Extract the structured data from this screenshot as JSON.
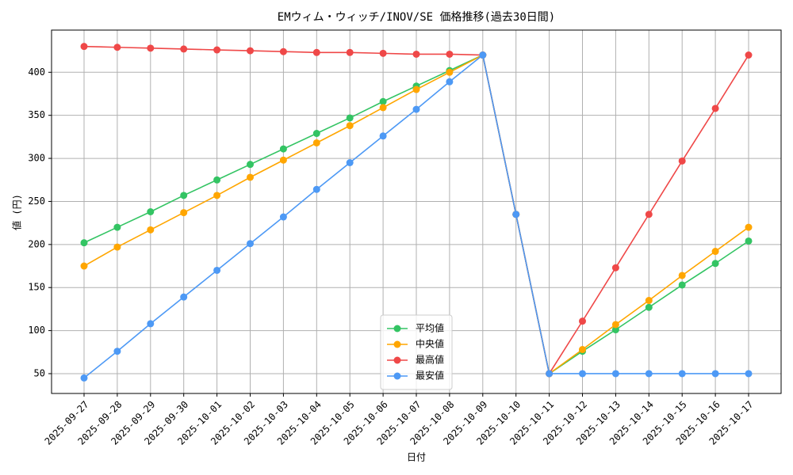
{
  "chart_data": {
    "type": "line",
    "title": "EMウィム・ウィッチ/INOV/SE 価格推移(過去30日間)",
    "x_label": "日付",
    "y_label": "値 (円)",
    "categories": [
      "2025-09-27",
      "2025-09-28",
      "2025-09-29",
      "2025-09-30",
      "2025-10-01",
      "2025-10-02",
      "2025-10-03",
      "2025-10-04",
      "2025-10-05",
      "2025-10-06",
      "2025-10-07",
      "2025-10-08",
      "2025-10-09",
      "2025-10-10",
      "2025-10-11",
      "2025-10-12",
      "2025-10-13",
      "2025-10-14",
      "2025-10-15",
      "2025-10-16",
      "2025-10-17"
    ],
    "series": [
      {
        "name": "平均値",
        "color": "#33c463",
        "values": [
          202,
          220,
          238,
          257,
          275,
          293,
          311,
          329,
          347,
          366,
          384,
          402,
          420,
          235,
          50,
          76,
          101,
          127,
          153,
          178,
          204
        ]
      },
      {
        "name": "中央値",
        "color": "#ffa600",
        "values": [
          175,
          197,
          217,
          237,
          257,
          278,
          298,
          318,
          338,
          359,
          380,
          400,
          420,
          235,
          50,
          78,
          107,
          135,
          164,
          192,
          220
        ]
      },
      {
        "name": "最高値",
        "color": "#ef4848",
        "values": [
          430,
          429,
          428,
          427,
          426,
          425,
          424,
          423,
          423,
          422,
          421,
          421,
          420,
          235,
          50,
          111,
          173,
          235,
          297,
          358,
          420
        ]
      },
      {
        "name": "最安値",
        "color": "#4d99f5",
        "values": [
          45,
          76,
          108,
          139,
          170,
          201,
          232,
          264,
          295,
          326,
          357,
          389,
          420,
          235,
          50,
          50,
          50,
          50,
          50,
          50,
          50
        ]
      }
    ],
    "ylim": [
      27,
      449
    ],
    "yticks": [
      50,
      100,
      150,
      200,
      250,
      300,
      350,
      400
    ],
    "grid": true,
    "legend": "lower center"
  }
}
